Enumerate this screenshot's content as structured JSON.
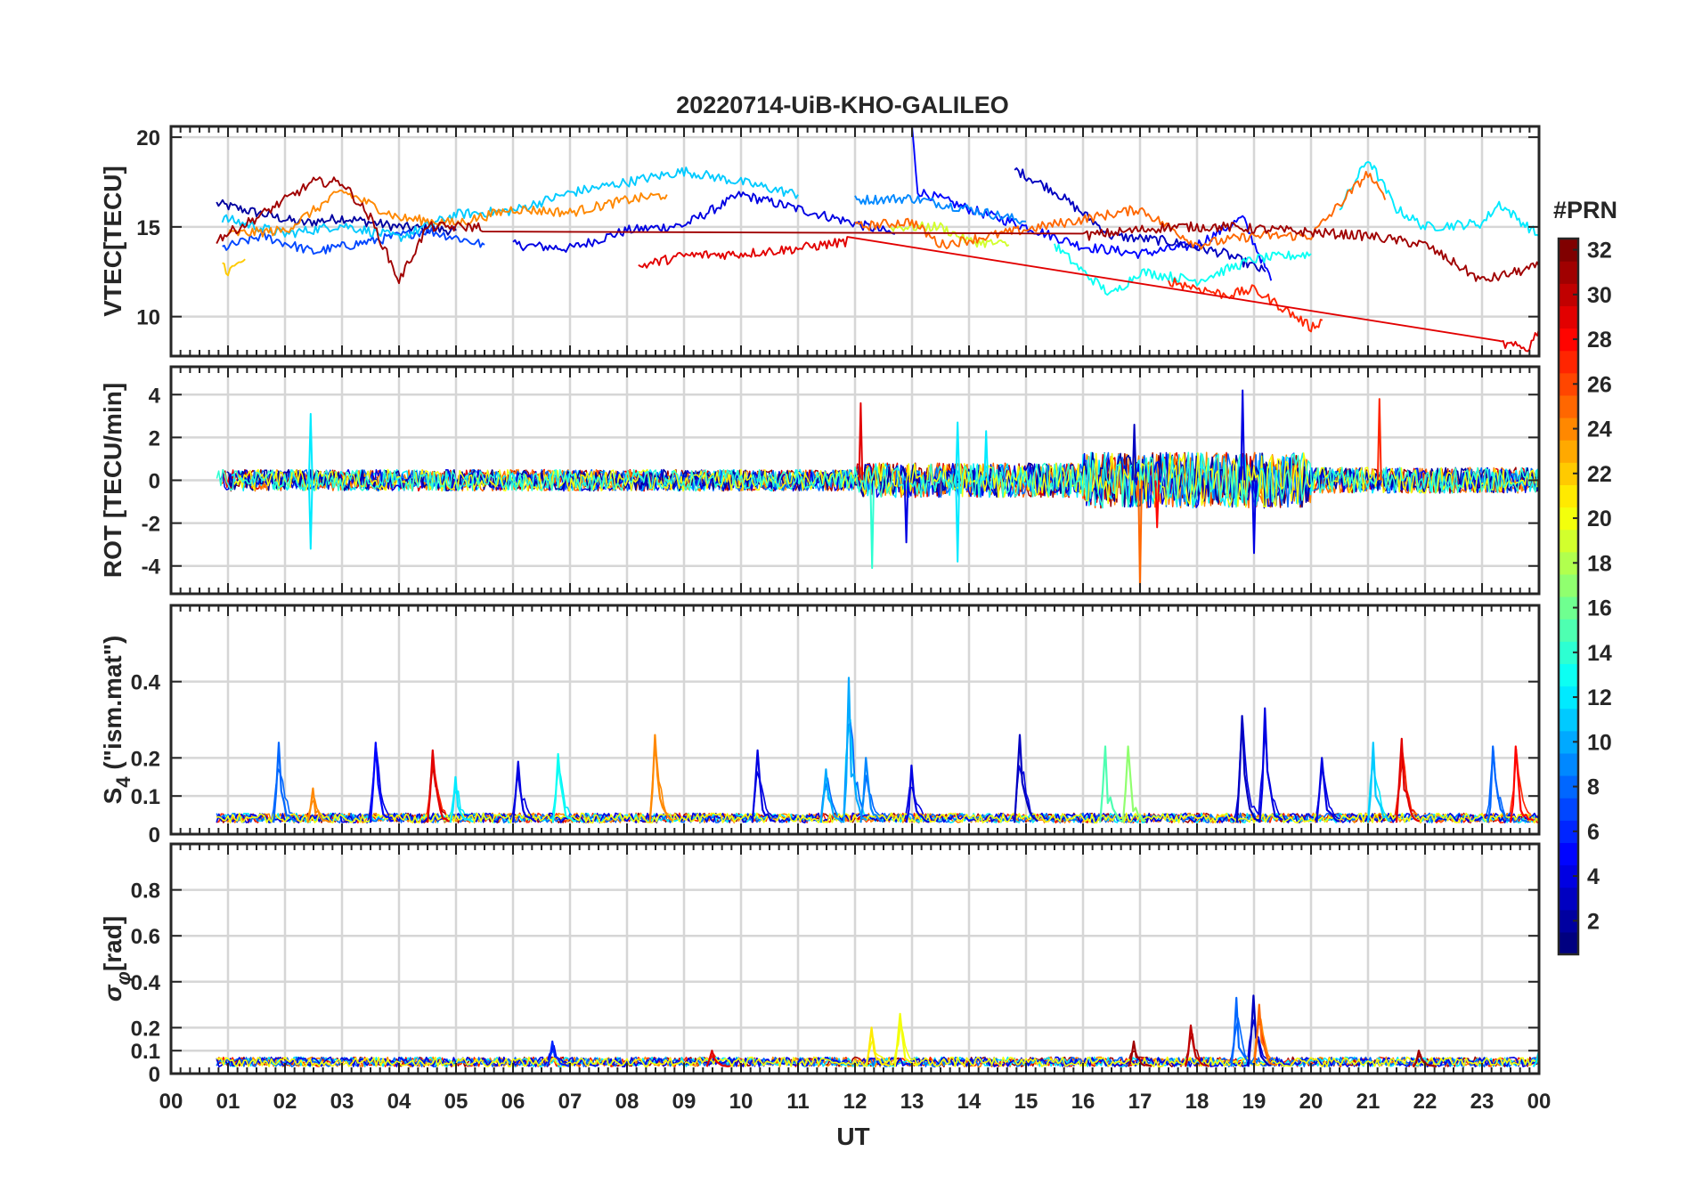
{
  "figure_title": "20220714-UiB-KHO-GALILEO",
  "colorbar": {
    "title": "#PRN",
    "ticks": [
      "2",
      "4",
      "6",
      "8",
      "10",
      "12",
      "14",
      "16",
      "18",
      "20",
      "22",
      "24",
      "26",
      "28",
      "30",
      "32"
    ],
    "tick_values": [
      2,
      4,
      6,
      8,
      10,
      12,
      14,
      16,
      18,
      20,
      22,
      24,
      26,
      28,
      30,
      32
    ],
    "range": [
      1,
      32
    ]
  },
  "chart_data": [
    {
      "type": "line",
      "title": "20220714-UiB-KHO-GALILEO",
      "xlabel": "UT",
      "ylabel": "VTEC[TECU]",
      "ylim": [
        7.8,
        20.6
      ],
      "yticks": [
        10,
        15,
        20
      ],
      "ytick_labels": [
        "10",
        "15",
        "20"
      ],
      "grid": true,
      "series_note": "one trace per PRN, colored by PRN number",
      "series": [
        {
          "prn": 2,
          "points": [
            [
              0.8,
              16.3
            ],
            [
              1.5,
              15.8
            ],
            [
              2.3,
              15.2
            ],
            [
              3.0,
              15.5
            ],
            [
              4.0,
              15.0
            ],
            [
              5.0,
              14.8
            ]
          ]
        },
        {
          "prn": 4,
          "points": [
            [
              6.0,
              14.0
            ],
            [
              7.0,
              13.8
            ],
            [
              8.0,
              14.8
            ],
            [
              9.0,
              15.1
            ],
            [
              10.0,
              16.8
            ],
            [
              11.0,
              16.0
            ],
            [
              12.0,
              15.2
            ],
            [
              12.7,
              14.6
            ]
          ]
        },
        {
          "prn": 5,
          "points": [
            [
              13.0,
              20.5
            ],
            [
              13.1,
              17.0
            ],
            [
              14.0,
              16.0
            ],
            [
              15.0,
              15.0
            ],
            [
              16.0,
              13.9
            ],
            [
              17.0,
              13.5
            ],
            [
              18.0,
              14.0
            ],
            [
              18.8,
              15.5
            ],
            [
              19.3,
              12.0
            ]
          ]
        },
        {
          "prn": 3,
          "points": [
            [
              14.8,
              18.2
            ],
            [
              15.5,
              17.0
            ],
            [
              16.5,
              14.5
            ],
            [
              17.5,
              14.2
            ],
            [
              18.5,
              13.5
            ],
            [
              19.2,
              12.5
            ]
          ]
        },
        {
          "prn": 7,
          "points": [
            [
              0.9,
              13.8
            ],
            [
              1.6,
              14.5
            ],
            [
              2.5,
              13.6
            ],
            [
              3.5,
              14.2
            ],
            [
              4.5,
              14.8
            ],
            [
              5.5,
              14.0
            ]
          ]
        },
        {
          "prn": 9,
          "points": [
            [
              12.0,
              16.5
            ],
            [
              13.0,
              16.6
            ],
            [
              14.0,
              16.0
            ],
            [
              15.0,
              15.3
            ]
          ]
        },
        {
          "prn": 11,
          "points": [
            [
              0.9,
              15.5
            ],
            [
              2.0,
              14.6
            ],
            [
              3.0,
              15.1
            ],
            [
              4.0,
              14.4
            ],
            [
              5.0,
              15.7
            ],
            [
              6.0,
              15.9
            ],
            [
              7.0,
              16.9
            ],
            [
              8.0,
              17.5
            ],
            [
              9.0,
              18.1
            ],
            [
              10.0,
              17.5
            ],
            [
              11.0,
              16.8
            ]
          ]
        },
        {
          "prn": 12,
          "points": [
            [
              20.5,
              16.0
            ],
            [
              21.0,
              18.8
            ],
            [
              21.5,
              16.0
            ],
            [
              22.0,
              15.0
            ],
            [
              23.0,
              15.2
            ],
            [
              23.3,
              16.3
            ],
            [
              24.0,
              14.5
            ]
          ]
        },
        {
          "prn": 13,
          "points": [
            [
              15.5,
              14.0
            ],
            [
              16.0,
              12.5
            ],
            [
              16.5,
              11.2
            ],
            [
              17.0,
              12.5
            ],
            [
              18.0,
              12.0
            ],
            [
              19.0,
              13.2
            ],
            [
              20.0,
              13.5
            ]
          ]
        },
        {
          "prn": 19,
          "points": [
            [
              12.6,
              15.0
            ],
            [
              13.5,
              15.0
            ],
            [
              14.0,
              14.2
            ],
            [
              14.7,
              14.0
            ]
          ]
        },
        {
          "prn": 22,
          "points": [
            [
              0.9,
              13.0
            ],
            [
              1.0,
              12.5
            ],
            [
              1.3,
              13.2
            ]
          ]
        },
        {
          "prn": 24,
          "points": [
            [
              1.0,
              14.6
            ],
            [
              2.0,
              14.8
            ],
            [
              3.0,
              17.0
            ],
            [
              4.0,
              15.5
            ],
            [
              5.0,
              15.2
            ],
            [
              6.0,
              16.0
            ],
            [
              7.0,
              15.8
            ],
            [
              8.0,
              16.5
            ],
            [
              8.7,
              16.8
            ]
          ]
        },
        {
          "prn": 25,
          "points": [
            [
              12.0,
              15.0
            ],
            [
              13.0,
              15.3
            ],
            [
              13.5,
              14.0
            ],
            [
              17.0,
              16.0
            ],
            [
              18.0,
              14.0
            ],
            [
              19.0,
              14.5
            ],
            [
              20.0,
              14.5
            ],
            [
              21.0,
              18.0
            ],
            [
              21.3,
              16.5
            ]
          ]
        },
        {
          "prn": 27,
          "points": [
            [
              17.5,
              12.0
            ],
            [
              18.5,
              11.2
            ],
            [
              19.0,
              11.5
            ],
            [
              19.5,
              10.5
            ],
            [
              20.0,
              9.4
            ],
            [
              20.2,
              9.8
            ]
          ]
        },
        {
          "prn": 29,
          "points": [
            [
              8.2,
              12.8
            ],
            [
              9.0,
              13.4
            ],
            [
              10.0,
              13.5
            ],
            [
              11.0,
              13.8
            ],
            [
              11.9,
              14.2
            ],
            [
              23.3,
              8.5
            ],
            [
              23.8,
              8.2
            ],
            [
              24.0,
              9.3
            ]
          ]
        },
        {
          "prn": 31,
          "points": [
            [
              0.8,
              14.3
            ],
            [
              1.5,
              15.5
            ],
            [
              2.5,
              17.5
            ],
            [
              3.0,
              17.5
            ],
            [
              3.5,
              15.5
            ],
            [
              4.0,
              12.0
            ],
            [
              4.5,
              15.0
            ],
            [
              5.5,
              15.0
            ],
            [
              16.0,
              14.5
            ],
            [
              17.5,
              15.0
            ],
            [
              18.5,
              15.0
            ],
            [
              21.0,
              14.5
            ],
            [
              22.0,
              14.0
            ],
            [
              23.0,
              12.0
            ],
            [
              24.0,
              12.8
            ]
          ]
        }
      ]
    },
    {
      "type": "line",
      "xlabel": "UT",
      "ylabel": "ROT [TECU/min]",
      "ylim": [
        -5.3,
        5.3
      ],
      "yticks": [
        -4,
        -2,
        0,
        2,
        4
      ],
      "ytick_labels": [
        "-4",
        "-2",
        "0",
        "2",
        "4"
      ],
      "grid": true,
      "baseline": 0,
      "noise_bands": [
        {
          "from": 0.8,
          "to": 12.0,
          "amplitude": 0.5
        },
        {
          "from": 12.0,
          "to": 16.0,
          "amplitude": 0.8
        },
        {
          "from": 16.0,
          "to": 20.0,
          "amplitude": 1.3
        },
        {
          "from": 20.0,
          "to": 24.0,
          "amplitude": 0.6
        }
      ],
      "spikes": [
        {
          "x": 2.45,
          "y": 3.1,
          "prn": 12
        },
        {
          "x": 2.45,
          "y": -3.2,
          "prn": 12
        },
        {
          "x": 12.1,
          "y": 3.6,
          "prn": 29
        },
        {
          "x": 12.3,
          "y": -4.1,
          "prn": 14
        },
        {
          "x": 12.9,
          "y": -2.9,
          "prn": 4
        },
        {
          "x": 13.8,
          "y": 2.7,
          "prn": 12
        },
        {
          "x": 13.8,
          "y": -3.8,
          "prn": 12
        },
        {
          "x": 14.3,
          "y": 2.3,
          "prn": 12
        },
        {
          "x": 17.0,
          "y": -5.0,
          "prn": 25
        },
        {
          "x": 18.8,
          "y": 4.2,
          "prn": 4
        },
        {
          "x": 19.0,
          "y": -3.4,
          "prn": 4
        },
        {
          "x": 21.2,
          "y": 3.8,
          "prn": 27
        },
        {
          "x": 16.9,
          "y": 2.6,
          "prn": 3
        },
        {
          "x": 17.3,
          "y": -2.2,
          "prn": 28
        }
      ]
    },
    {
      "type": "line",
      "xlabel": "UT",
      "ylabel": "S4 (\"ism.mat\")",
      "ylabel_parts": {
        "symbol": "S",
        "subscript": "4",
        "rest": " (\"ism.mat\")"
      },
      "ylim": [
        0,
        0.6
      ],
      "yticks": [
        0,
        0.1,
        0.2,
        0.4
      ],
      "ytick_labels": [
        "0",
        "0.1",
        "0.2",
        "0.4"
      ],
      "grid": true,
      "baseline": 0.03,
      "peaks": [
        {
          "x": 1.9,
          "y": 0.24,
          "prn": 8
        },
        {
          "x": 2.5,
          "y": 0.12,
          "prn": 24
        },
        {
          "x": 3.6,
          "y": 0.24,
          "prn": 5
        },
        {
          "x": 4.6,
          "y": 0.22,
          "prn": 29
        },
        {
          "x": 5.0,
          "y": 0.15,
          "prn": 12
        },
        {
          "x": 6.1,
          "y": 0.19,
          "prn": 4
        },
        {
          "x": 6.8,
          "y": 0.21,
          "prn": 13
        },
        {
          "x": 8.5,
          "y": 0.26,
          "prn": 24
        },
        {
          "x": 10.3,
          "y": 0.22,
          "prn": 4
        },
        {
          "x": 11.5,
          "y": 0.17,
          "prn": 10
        },
        {
          "x": 11.9,
          "y": 0.41,
          "prn": 10
        },
        {
          "x": 12.2,
          "y": 0.2,
          "prn": 9
        },
        {
          "x": 13.0,
          "y": 0.18,
          "prn": 4
        },
        {
          "x": 14.9,
          "y": 0.26,
          "prn": 3
        },
        {
          "x": 16.4,
          "y": 0.23,
          "prn": 15
        },
        {
          "x": 16.8,
          "y": 0.23,
          "prn": 17
        },
        {
          "x": 18.8,
          "y": 0.31,
          "prn": 3
        },
        {
          "x": 19.2,
          "y": 0.33,
          "prn": 4
        },
        {
          "x": 20.2,
          "y": 0.2,
          "prn": 4
        },
        {
          "x": 21.1,
          "y": 0.24,
          "prn": 11
        },
        {
          "x": 21.6,
          "y": 0.25,
          "prn": 29
        },
        {
          "x": 23.2,
          "y": 0.23,
          "prn": 8
        },
        {
          "x": 23.6,
          "y": 0.23,
          "prn": 28
        }
      ]
    },
    {
      "type": "line",
      "xlabel": "UT",
      "ylabel": "σφ[rad]",
      "ylabel_parts": {
        "symbol": "σ",
        "subscript": "φ",
        "rest": "[rad]"
      },
      "ylim": [
        0,
        1.0
      ],
      "yticks": [
        0,
        0.1,
        0.2,
        0.4,
        0.6,
        0.8
      ],
      "ytick_labels": [
        "0",
        "0.1",
        "0.2",
        "0.4",
        "0.6",
        "0.8"
      ],
      "grid": true,
      "baseline": 0.03,
      "peaks": [
        {
          "x": 6.7,
          "y": 0.14,
          "prn": 6
        },
        {
          "x": 9.5,
          "y": 0.1,
          "prn": 29
        },
        {
          "x": 12.3,
          "y": 0.2,
          "prn": 21
        },
        {
          "x": 12.8,
          "y": 0.26,
          "prn": 20
        },
        {
          "x": 16.9,
          "y": 0.14,
          "prn": 31
        },
        {
          "x": 17.9,
          "y": 0.21,
          "prn": 30
        },
        {
          "x": 18.7,
          "y": 0.33,
          "prn": 8
        },
        {
          "x": 19.0,
          "y": 0.34,
          "prn": 3
        },
        {
          "x": 19.1,
          "y": 0.3,
          "prn": 25
        },
        {
          "x": 21.9,
          "y": 0.1,
          "prn": 31
        },
        {
          "x": 24.0,
          "y": 0.09,
          "prn": 12
        }
      ]
    }
  ],
  "x_axis": {
    "label": "UT",
    "range": [
      0,
      24
    ],
    "ticks": [
      0,
      1,
      2,
      3,
      4,
      5,
      6,
      7,
      8,
      9,
      10,
      11,
      12,
      13,
      14,
      15,
      16,
      17,
      18,
      19,
      20,
      21,
      22,
      23,
      24
    ],
    "tick_labels": [
      "00",
      "01",
      "02",
      "03",
      "04",
      "05",
      "06",
      "07",
      "08",
      "09",
      "10",
      "11",
      "12",
      "13",
      "14",
      "15",
      "16",
      "17",
      "18",
      "19",
      "20",
      "21",
      "22",
      "23",
      "00"
    ]
  }
}
